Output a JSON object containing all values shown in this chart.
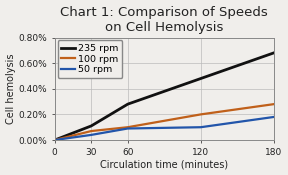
{
  "title": "Chart 1: Comparison of Speeds\non Cell Hemolysis",
  "xlabel": "Circulation time (minutes)",
  "ylabel": "Cell hemolysis",
  "x": [
    0,
    30,
    60,
    120,
    180
  ],
  "series": [
    {
      "label": "235 rpm",
      "color": "#111111",
      "linewidth": 2.0,
      "y": [
        0.0,
        0.0011,
        0.0028,
        0.0048,
        0.0068
      ]
    },
    {
      "label": "100 rpm",
      "color": "#c0601a",
      "linewidth": 1.6,
      "y": [
        0.0,
        0.0007,
        0.001,
        0.002,
        0.0028
      ]
    },
    {
      "label": "50 rpm",
      "color": "#2255aa",
      "linewidth": 1.6,
      "y": [
        0.0,
        0.0004,
        0.0009,
        0.001,
        0.0018
      ]
    }
  ],
  "ylim": [
    0.0,
    0.008
  ],
  "ytick_vals": [
    0.0,
    0.002,
    0.004,
    0.006,
    0.008
  ],
  "ytick_labels": [
    "0.00%",
    "0.20%",
    "0.40%",
    "0.60%",
    "0.80%"
  ],
  "xticks": [
    0,
    30,
    60,
    120,
    180
  ],
  "bg_color": "#f0eeeb",
  "plot_bg": "#f0eeeb",
  "grid_color": "#bbbbbb",
  "spine_color": "#888888",
  "title_fontsize": 9.5,
  "axis_label_fontsize": 7,
  "tick_fontsize": 6.5,
  "legend_fontsize": 6.8
}
